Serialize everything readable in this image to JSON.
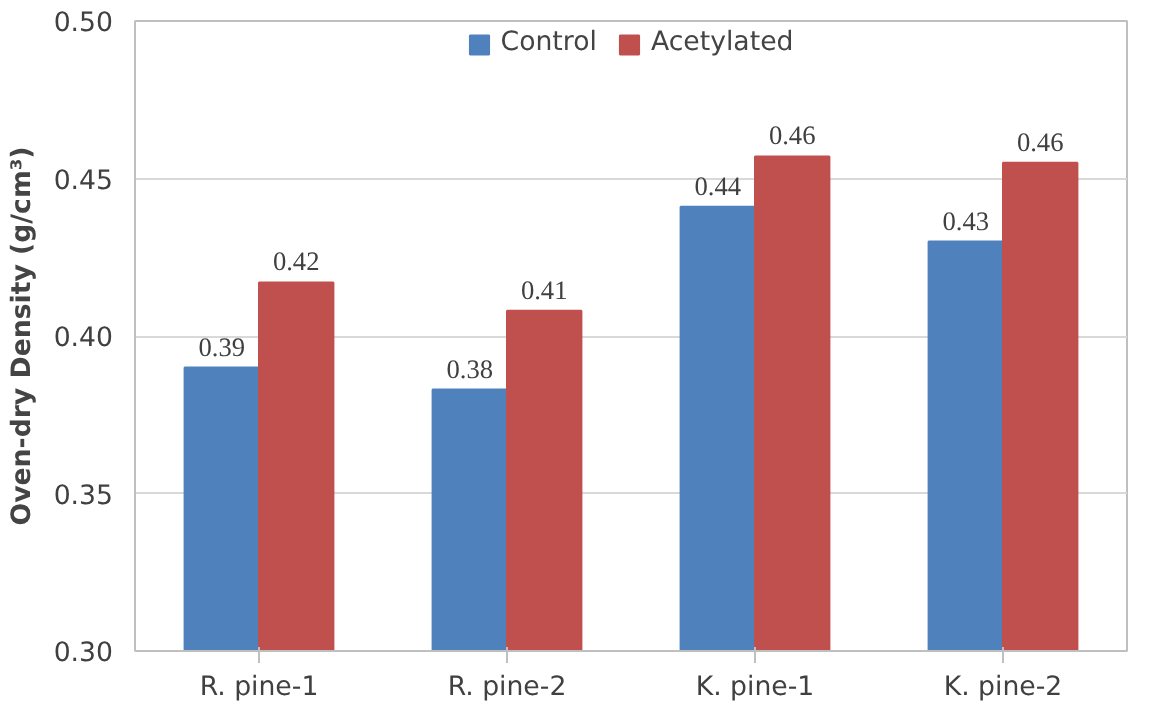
{
  "chart_data": {
    "type": "bar",
    "ylabel": "Oven-dry Density (g/cm³)",
    "categories": [
      "R. pine-1",
      "R. pine-2",
      "K. pine-1",
      "K. pine-2"
    ],
    "series": [
      {
        "name": "Control",
        "color": "#4f81bd",
        "values": [
          0.39,
          0.383,
          0.441,
          0.43
        ],
        "value_labels": [
          "0.39",
          "0.38",
          "0.44",
          "0.43"
        ]
      },
      {
        "name": "Acetylated",
        "color": "#c0504d",
        "values": [
          0.417,
          0.408,
          0.457,
          0.455
        ],
        "value_labels": [
          "0.42",
          "0.41",
          "0.46",
          "0.46"
        ]
      }
    ],
    "ylim": [
      0.3,
      0.5
    ],
    "yticks": [
      "0.30",
      "0.35",
      "0.40",
      "0.45",
      "0.50"
    ],
    "grid": "y",
    "legend": "top"
  }
}
